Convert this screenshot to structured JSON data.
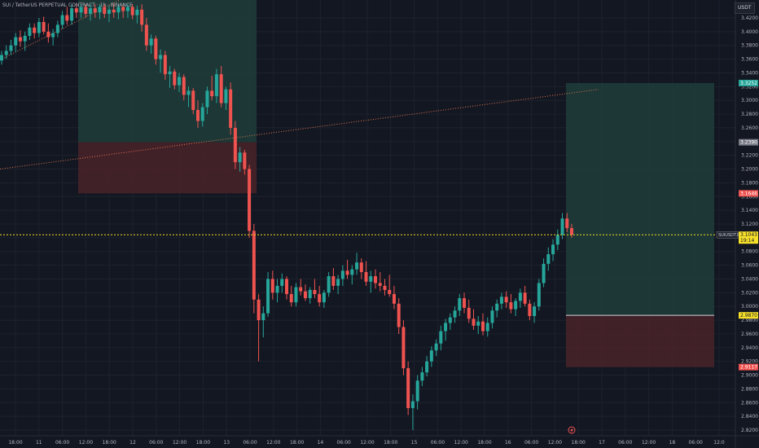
{
  "header": {
    "title": "SUI / TetherUS PERPETUAL CONTRACT · 1h · BINANCE",
    "symbol_button": "USDT"
  },
  "colors": {
    "bg": "#131722",
    "up": "#26a69a",
    "down": "#ef5350",
    "grid": "#1e222d",
    "axis_text": "#b2b5be",
    "current_price": "#f7e02a",
    "target_zone": "#1f3d3a",
    "stop_zone": "#4a2329",
    "trendline": "#e0744a"
  },
  "price_axis": {
    "ticks": [
      "3.4200",
      "3.4000",
      "3.3800",
      "3.3600",
      "3.3400",
      "3.3200",
      "3.3000",
      "3.2800",
      "3.2600",
      "3.2400",
      "3.2200",
      "3.2000",
      "3.1800",
      "3.1600",
      "3.1400",
      "3.1200",
      "3.1000",
      "3.0800",
      "3.0600",
      "3.0400",
      "3.0200",
      "3.0000",
      "2.9800",
      "2.9600",
      "2.9400",
      "2.9200",
      "2.9000",
      "2.8800",
      "2.8600",
      "2.8400",
      "2.8200"
    ]
  },
  "price_labels": [
    {
      "name": "target-upper-label",
      "price": 3.3252,
      "text": "3.3252",
      "color": "#26a69a",
      "fg": "#ffffff"
    },
    {
      "name": "entry-upper-label",
      "price": 3.239,
      "text": "3.2390",
      "color": "#787b86",
      "fg": "#ffffff"
    },
    {
      "name": "stop-upper-label",
      "price": 3.1646,
      "text": "3.1646",
      "color": "#ef5350",
      "fg": "#ffffff"
    },
    {
      "name": "entry-lower-label",
      "price": 2.987,
      "text": "2.9870",
      "color": "#f7e02a",
      "fg": "#131722"
    },
    {
      "name": "stop-lower-label",
      "price": 2.9117,
      "text": "2.9117",
      "color": "#ef5350",
      "fg": "#ffffff"
    }
  ],
  "current_price": {
    "symbol_tag": "SUIUSDT.P",
    "price": 3.1043,
    "price_text": "3.1043",
    "countdown": "19:14"
  },
  "time_axis": {
    "labels": [
      "18:00",
      "11",
      "06:00",
      "12:00",
      "18:00",
      "12",
      "06:00",
      "12:00",
      "18:00",
      "13",
      "06:00",
      "12:00",
      "18:00",
      "14",
      "06:00",
      "12:00",
      "18:00",
      "15",
      "06:00",
      "12:00",
      "18:00",
      "16",
      "06:00",
      "12:00",
      "18:00",
      "17",
      "06:00",
      "12:00",
      "18",
      "06:00",
      "12:0"
    ]
  },
  "positions": [
    {
      "name": "long-position-upper",
      "target": 3.44,
      "entry": 3.239,
      "stop": 3.1646
    },
    {
      "name": "long-position-lower",
      "target": 3.3252,
      "entry": 2.987,
      "stop": 2.9117
    }
  ],
  "trendlines": [
    {
      "name": "trendline-rising-left",
      "from": 3.359,
      "to": 3.448
    },
    {
      "name": "trendline-long-rising",
      "from": 3.2,
      "to": 3.316
    }
  ],
  "chart_data": {
    "type": "candlestick",
    "symbol": "SUI / TetherUS PERPETUAL CONTRACT",
    "interval": "1h",
    "exchange": "BINANCE",
    "note": "OHLC approximated from the screenshot",
    "candles": [
      [
        3.358,
        3.372,
        3.352,
        3.366
      ],
      [
        3.366,
        3.38,
        3.36,
        3.372
      ],
      [
        3.372,
        3.388,
        3.366,
        3.38
      ],
      [
        3.38,
        3.398,
        3.37,
        3.392
      ],
      [
        3.392,
        3.402,
        3.378,
        3.386
      ],
      [
        3.386,
        3.4,
        3.372,
        3.394
      ],
      [
        3.394,
        3.412,
        3.388,
        3.406
      ],
      [
        3.406,
        3.412,
        3.39,
        3.398
      ],
      [
        3.398,
        3.42,
        3.392,
        3.414
      ],
      [
        3.414,
        3.422,
        3.396,
        3.4
      ],
      [
        3.4,
        3.412,
        3.384,
        3.392
      ],
      [
        3.392,
        3.404,
        3.38,
        3.398
      ],
      [
        3.398,
        3.416,
        3.392,
        3.41
      ],
      [
        3.41,
        3.43,
        3.404,
        3.424
      ],
      [
        3.424,
        3.436,
        3.41,
        3.416
      ],
      [
        3.416,
        3.44,
        3.41,
        3.434
      ],
      [
        3.434,
        3.44,
        3.42,
        3.428
      ],
      [
        3.428,
        3.44,
        3.42,
        3.436
      ],
      [
        3.436,
        3.44,
        3.42,
        3.426
      ],
      [
        3.426,
        3.44,
        3.416,
        3.434
      ],
      [
        3.434,
        3.44,
        3.42,
        3.428
      ],
      [
        3.428,
        3.44,
        3.418,
        3.436
      ],
      [
        3.436,
        3.44,
        3.42,
        3.426
      ],
      [
        3.426,
        3.438,
        3.414,
        3.432
      ],
      [
        3.432,
        3.44,
        3.42,
        3.428
      ],
      [
        3.428,
        3.44,
        3.418,
        3.436
      ],
      [
        3.436,
        3.44,
        3.42,
        3.43
      ],
      [
        3.43,
        3.44,
        3.42,
        3.436
      ],
      [
        3.436,
        3.44,
        3.418,
        3.424
      ],
      [
        3.424,
        3.438,
        3.412,
        3.432
      ],
      [
        3.432,
        3.44,
        3.4,
        3.41
      ],
      [
        3.41,
        3.42,
        3.372,
        3.38
      ],
      [
        3.38,
        3.396,
        3.368,
        3.39
      ],
      [
        3.39,
        3.394,
        3.352,
        3.36
      ],
      [
        3.36,
        3.374,
        3.34,
        3.366
      ],
      [
        3.366,
        3.372,
        3.33,
        3.338
      ],
      [
        3.338,
        3.35,
        3.318,
        3.342
      ],
      [
        3.342,
        3.346,
        3.316,
        3.322
      ],
      [
        3.322,
        3.34,
        3.312,
        3.334
      ],
      [
        3.334,
        3.338,
        3.3,
        3.308
      ],
      [
        3.308,
        3.32,
        3.29,
        3.314
      ],
      [
        3.314,
        3.318,
        3.28,
        3.286
      ],
      [
        3.286,
        3.3,
        3.26,
        3.27
      ],
      [
        3.27,
        3.296,
        3.262,
        3.29
      ],
      [
        3.29,
        3.32,
        3.28,
        3.314
      ],
      [
        3.314,
        3.336,
        3.3,
        3.306
      ],
      [
        3.306,
        3.346,
        3.296,
        3.338
      ],
      [
        3.338,
        3.35,
        3.29,
        3.296
      ],
      [
        3.296,
        3.32,
        3.286,
        3.316
      ],
      [
        3.316,
        3.326,
        3.25,
        3.26
      ],
      [
        3.26,
        3.27,
        3.2,
        3.21
      ],
      [
        3.21,
        3.232,
        3.196,
        3.224
      ],
      [
        3.224,
        3.228,
        3.192,
        3.2
      ],
      [
        3.2,
        3.206,
        3.1,
        3.11
      ],
      [
        3.11,
        3.12,
        2.99,
        3.01
      ],
      [
        3.01,
        3.018,
        2.92,
        2.98
      ],
      [
        2.98,
        3.0,
        2.955,
        2.99
      ],
      [
        2.99,
        3.05,
        2.985,
        3.04
      ],
      [
        3.04,
        3.052,
        3.01,
        3.02
      ],
      [
        3.02,
        3.04,
        3.006,
        3.03
      ],
      [
        3.03,
        3.048,
        3.02,
        3.04
      ],
      [
        3.04,
        3.044,
        3.01,
        3.018
      ],
      [
        3.018,
        3.03,
        3.0,
        3.006
      ],
      [
        3.006,
        3.034,
        3.0,
        3.028
      ],
      [
        3.028,
        3.04,
        3.016,
        3.022
      ],
      [
        3.022,
        3.032,
        3.008,
        3.012
      ],
      [
        3.012,
        3.028,
        3.004,
        3.024
      ],
      [
        3.024,
        3.04,
        3.012,
        3.018
      ],
      [
        3.018,
        3.03,
        3.0,
        3.006
      ],
      [
        3.006,
        3.024,
        2.998,
        3.02
      ],
      [
        3.02,
        3.05,
        3.014,
        3.044
      ],
      [
        3.044,
        3.056,
        3.024,
        3.03
      ],
      [
        3.03,
        3.046,
        3.018,
        3.04
      ],
      [
        3.04,
        3.06,
        3.03,
        3.052
      ],
      [
        3.052,
        3.068,
        3.04,
        3.046
      ],
      [
        3.046,
        3.06,
        3.032,
        3.054
      ],
      [
        3.054,
        3.078,
        3.046,
        3.064
      ],
      [
        3.064,
        3.07,
        3.04,
        3.05
      ],
      [
        3.05,
        3.066,
        3.03,
        3.036
      ],
      [
        3.036,
        3.052,
        3.02,
        3.044
      ],
      [
        3.044,
        3.054,
        3.026,
        3.034
      ],
      [
        3.034,
        3.05,
        3.022,
        3.03
      ],
      [
        3.03,
        3.04,
        3.016,
        3.024
      ],
      [
        3.024,
        3.046,
        3.014,
        3.018
      ],
      [
        3.018,
        3.03,
        2.996,
        3.004
      ],
      [
        3.004,
        3.012,
        2.96,
        2.97
      ],
      [
        2.97,
        2.98,
        2.9,
        2.91
      ],
      [
        2.91,
        2.92,
        2.842,
        2.852
      ],
      [
        2.852,
        2.872,
        2.82,
        2.862
      ],
      [
        2.862,
        2.9,
        2.85,
        2.892
      ],
      [
        2.892,
        2.912,
        2.884,
        2.904
      ],
      [
        2.904,
        2.928,
        2.898,
        2.92
      ],
      [
        2.92,
        2.942,
        2.912,
        2.936
      ],
      [
        2.936,
        2.952,
        2.928,
        2.946
      ],
      [
        2.946,
        2.972,
        2.936,
        2.964
      ],
      [
        2.964,
        2.982,
        2.95,
        2.976
      ],
      [
        2.976,
        2.99,
        2.966,
        2.984
      ],
      [
        2.984,
        3.0,
        2.976,
        2.994
      ],
      [
        2.994,
        3.018,
        2.986,
        3.012
      ],
      [
        3.012,
        3.02,
        2.99,
        2.998
      ],
      [
        2.998,
        3.01,
        2.976,
        2.982
      ],
      [
        2.982,
        2.996,
        2.966,
        2.972
      ],
      [
        2.972,
        2.986,
        2.96,
        2.978
      ],
      [
        2.978,
        2.99,
        2.958,
        2.964
      ],
      [
        2.964,
        2.984,
        2.956,
        2.976
      ],
      [
        2.976,
        3.0,
        2.968,
        2.994
      ],
      [
        2.994,
        3.01,
        2.984,
        3.004
      ],
      [
        3.004,
        3.02,
        2.996,
        3.014
      ],
      [
        3.014,
        3.022,
        2.998,
        3.006
      ],
      [
        3.006,
        3.018,
        2.99,
        2.996
      ],
      [
        2.996,
        3.012,
        2.986,
        3.008
      ],
      [
        3.008,
        3.026,
        2.998,
        3.02
      ],
      [
        3.02,
        3.03,
        3.0,
        3.004
      ],
      [
        3.004,
        3.01,
        2.98,
        2.986
      ],
      [
        2.986,
        3.006,
        2.976,
        3.0
      ],
      [
        3.0,
        3.04,
        2.994,
        3.034
      ],
      [
        3.034,
        3.07,
        3.028,
        3.062
      ],
      [
        3.062,
        3.086,
        3.052,
        3.076
      ],
      [
        3.076,
        3.098,
        3.066,
        3.09
      ],
      [
        3.09,
        3.112,
        3.082,
        3.104
      ],
      [
        3.104,
        3.136,
        3.098,
        3.128
      ],
      [
        3.128,
        3.136,
        3.108,
        3.114
      ],
      [
        3.114,
        3.12,
        3.1,
        3.1043
      ]
    ]
  }
}
